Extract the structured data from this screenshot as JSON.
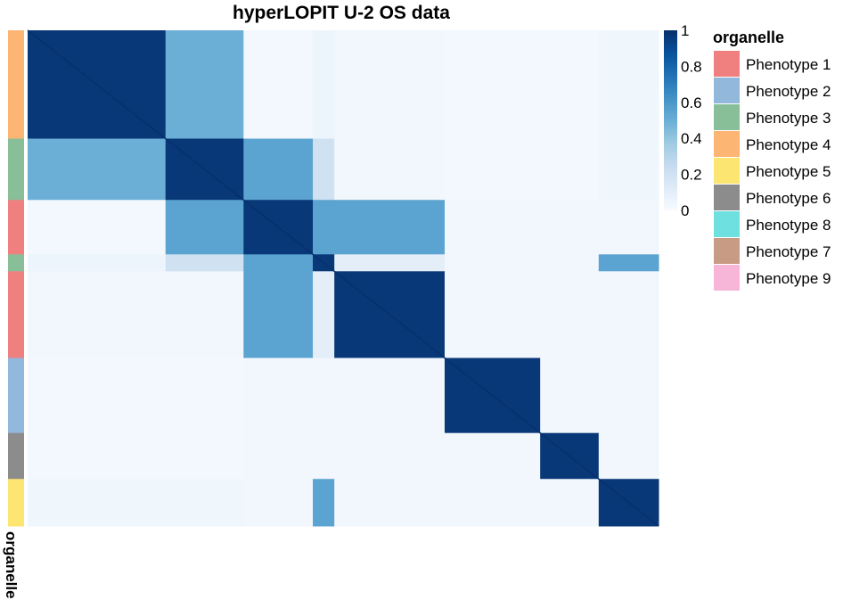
{
  "chart_data": {
    "type": "heatmap",
    "title": "hyperLOPIT U-2 OS data",
    "colorbar": {
      "ticks": [
        "0",
        "0.2",
        "0.4",
        "0.6",
        "0.8",
        "1"
      ],
      "tick_values": [
        0,
        0.2,
        0.4,
        0.6,
        0.8,
        1
      ],
      "colors": [
        "#f7fbff",
        "#deebf7",
        "#c6dbef",
        "#9ecae1",
        "#6baed6",
        "#4292c6",
        "#2171b5",
        "#08519c",
        "#08306b"
      ]
    },
    "annotation": {
      "label": "organelle",
      "legend_title": "organelle",
      "legend": [
        {
          "name": "Phenotype 1",
          "color": "#f08080"
        },
        {
          "name": "Phenotype 2",
          "color": "#92b8dc"
        },
        {
          "name": "Phenotype 3",
          "color": "#88bf98"
        },
        {
          "name": "Phenotype 4",
          "color": "#fdb574"
        },
        {
          "name": "Phenotype 5",
          "color": "#fde572"
        },
        {
          "name": "Phenotype 6",
          "color": "#8c8c8c"
        },
        {
          "name": "Phenotype 8",
          "color": "#6ee0e0"
        },
        {
          "name": "Phenotype 7",
          "color": "#c89c84"
        },
        {
          "name": "Phenotype 9",
          "color": "#f7b6d8"
        }
      ]
    },
    "clusters": [
      {
        "label": "Phenotype 4",
        "size": 0.205
      },
      {
        "label": "Phenotype 3",
        "size": 0.116
      },
      {
        "label": "Phenotype 1",
        "size": 0.103
      },
      {
        "label": "Phenotype 3",
        "size": 0.032
      },
      {
        "label": "Phenotype 1",
        "size": 0.164
      },
      {
        "label": "Phenotype 2",
        "size": 0.142
      },
      {
        "label": "Phenotype 6",
        "size": 0.087
      },
      {
        "label": "Phenotype 5",
        "size": 0.089
      }
    ],
    "block_values": [
      [
        0.97,
        0.5,
        0.02,
        0.05,
        0.03,
        0.02,
        0.02,
        0.04
      ],
      [
        0.5,
        0.97,
        0.55,
        0.2,
        0.03,
        0.02,
        0.02,
        0.04
      ],
      [
        0.02,
        0.55,
        0.97,
        0.55,
        0.55,
        0.03,
        0.03,
        0.03
      ],
      [
        0.05,
        0.2,
        0.55,
        0.97,
        0.1,
        0.03,
        0.03,
        0.55
      ],
      [
        0.03,
        0.03,
        0.55,
        0.1,
        0.97,
        0.03,
        0.03,
        0.03
      ],
      [
        0.02,
        0.02,
        0.03,
        0.03,
        0.03,
        0.97,
        0.03,
        0.03
      ],
      [
        0.02,
        0.02,
        0.03,
        0.03,
        0.03,
        0.03,
        0.97,
        0.03
      ],
      [
        0.04,
        0.04,
        0.03,
        0.55,
        0.03,
        0.03,
        0.03,
        0.97
      ]
    ]
  }
}
